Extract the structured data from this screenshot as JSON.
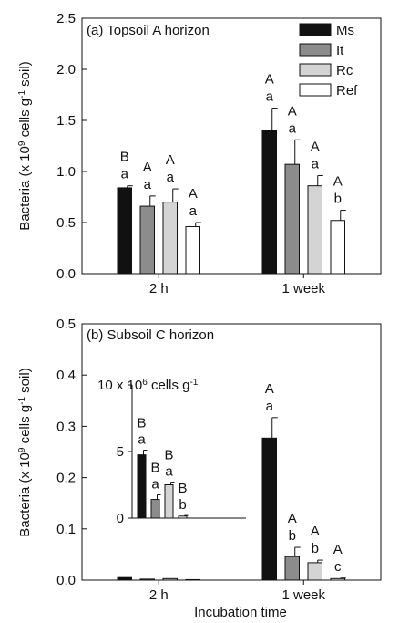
{
  "chart_data": [
    {
      "panel": "a",
      "type": "bar",
      "title": "(a) Topsoil A horizon",
      "ylabel": "Bacteria (x 10^9 cells g^-1 soil)",
      "xlabel": "",
      "ylim": [
        0,
        2.5
      ],
      "yticks": [
        "0.0",
        "0.5",
        "1.0",
        "1.5",
        "2.0",
        "2.5"
      ],
      "categories": [
        "2 h",
        "1 week"
      ],
      "legend": {
        "placement": "top-right",
        "entries": [
          "Ms",
          "It",
          "Rc",
          "Ref"
        ]
      },
      "series": [
        {
          "name": "Ms",
          "color": "#111111",
          "values": [
            0.84,
            1.4
          ],
          "errors": [
            0.02,
            0.22
          ],
          "upper": [
            "B",
            "A"
          ],
          "lower": [
            "a",
            "a"
          ]
        },
        {
          "name": "It",
          "color": "#8c8c8c",
          "values": [
            0.66,
            1.07
          ],
          "errors": [
            0.1,
            0.24
          ],
          "upper": [
            "A",
            "A"
          ],
          "lower": [
            "a",
            "a"
          ]
        },
        {
          "name": "Rc",
          "color": "#d4d4d4",
          "values": [
            0.7,
            0.86
          ],
          "errors": [
            0.13,
            0.1
          ],
          "upper": [
            "A",
            "A"
          ],
          "lower": [
            "a",
            "a"
          ]
        },
        {
          "name": "Ref",
          "color": "#ffffff",
          "values": [
            0.46,
            0.52
          ],
          "errors": [
            0.04,
            0.1
          ],
          "upper": [
            "A",
            "A"
          ],
          "lower": [
            "a",
            "b"
          ]
        }
      ]
    },
    {
      "panel": "b",
      "type": "bar",
      "title": "(b) Subsoil C horizon",
      "ylabel": "Bacteria (x 10^9 cells g^-1 soil)",
      "xlabel": "Incubation time",
      "ylim": [
        0,
        0.5
      ],
      "yticks": [
        "0.0",
        "0.1",
        "0.2",
        "0.3",
        "0.4",
        "0.5"
      ],
      "categories": [
        "2 h",
        "1 week"
      ],
      "series": [
        {
          "name": "Ms",
          "color": "#111111",
          "values": [
            0.005,
            0.277
          ],
          "errors": [
            0,
            0.04
          ],
          "upper": [
            "",
            "A"
          ],
          "lower": [
            "",
            "a"
          ]
        },
        {
          "name": "It",
          "color": "#8c8c8c",
          "values": [
            0.002,
            0.046
          ],
          "errors": [
            0,
            0.018
          ],
          "upper": [
            "",
            "A"
          ],
          "lower": [
            "",
            "b"
          ]
        },
        {
          "name": "Rc",
          "color": "#d4d4d4",
          "values": [
            0.003,
            0.034
          ],
          "errors": [
            0,
            0.005
          ],
          "upper": [
            "",
            "A"
          ],
          "lower": [
            "",
            "b"
          ]
        },
        {
          "name": "Ref",
          "color": "#ffffff",
          "values": [
            0.001,
            0.003
          ],
          "errors": [
            0,
            0.001
          ],
          "upper": [
            "",
            "A"
          ],
          "lower": [
            "",
            "c"
          ]
        }
      ],
      "inset": {
        "ylabel": "10 x 10^6 cells g^-1",
        "ylim": [
          0,
          10
        ],
        "yticks": [
          "0",
          "5"
        ],
        "values": [
          4.75,
          1.4,
          2.5,
          0.15
        ],
        "errors": [
          0.35,
          0.35,
          0.2,
          0.05
        ],
        "upper": [
          "B",
          "B",
          "B",
          "B"
        ],
        "lower": [
          "a",
          "a",
          "a",
          "b"
        ]
      }
    }
  ]
}
